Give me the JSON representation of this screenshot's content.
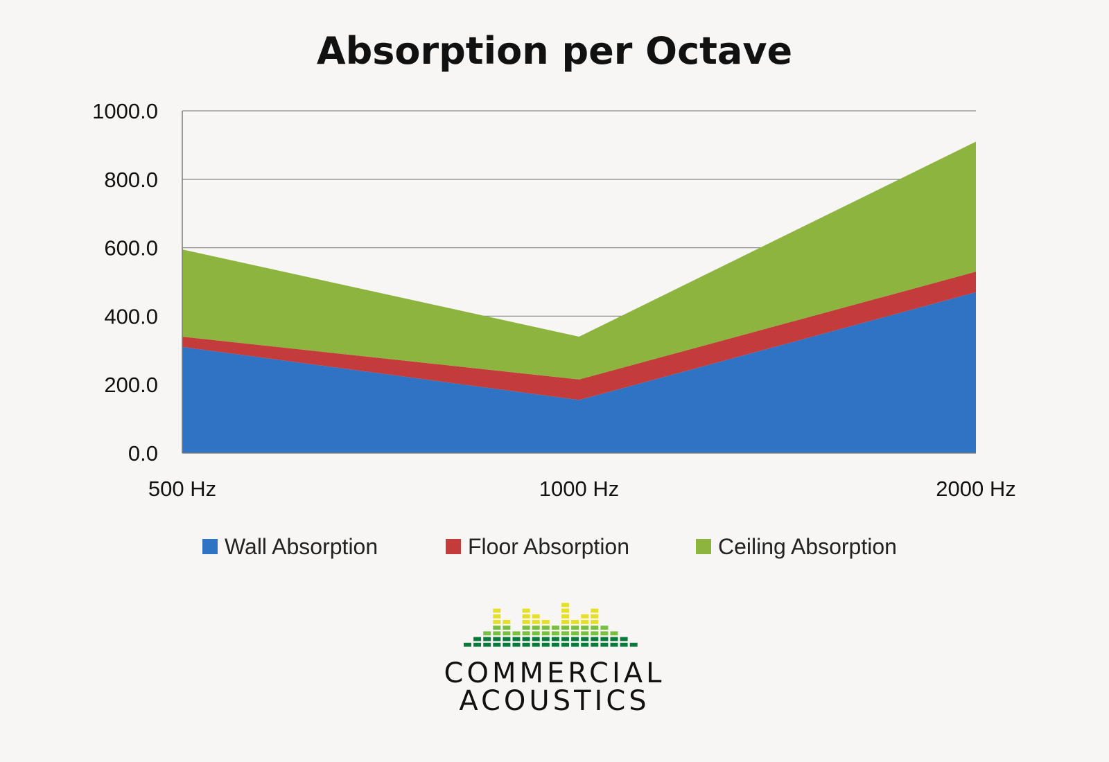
{
  "chart_data": {
    "type": "area",
    "stacked": true,
    "title": "Absorption per Octave",
    "categories": [
      "500 Hz",
      "1000 Hz",
      "2000 Hz"
    ],
    "ylim": [
      0,
      1000
    ],
    "yticks": [
      "0.0",
      "200.0",
      "400.0",
      "600.0",
      "800.0",
      "1000.0"
    ],
    "grid": true,
    "legend": "bottom",
    "series": [
      {
        "name": "Wall Absorption",
        "values": [
          310,
          155,
          470
        ],
        "color": "#2e73c4"
      },
      {
        "name": "Floor Absorption",
        "values": [
          30,
          60,
          60
        ],
        "color": "#c43b3b"
      },
      {
        "name": "Ceiling Absorption",
        "values": [
          255,
          125,
          380
        ],
        "color": "#8db43e"
      }
    ]
  },
  "logo": {
    "line1": "COMMERCIAL",
    "line2": "ACOUSTICS",
    "colors": {
      "top": "#e6df2a",
      "mid": "#79c040",
      "bottom": "#0a7a3c"
    }
  }
}
